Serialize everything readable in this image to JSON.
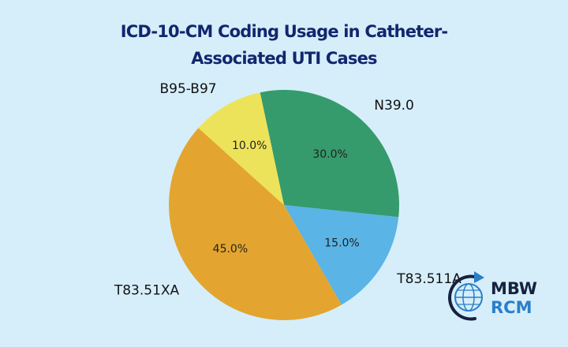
{
  "chart_data": {
    "type": "pie",
    "title_lines": [
      "ICD-10-CM Coding Usage in Catheter-",
      "Associated UTI Cases"
    ],
    "slices": [
      {
        "label": "N39.0",
        "value": 30.0,
        "pct_label": "30.0%",
        "color": "#359b6c"
      },
      {
        "label": "T83.511A",
        "value": 15.0,
        "pct_label": "15.0%",
        "color": "#5ab4e5"
      },
      {
        "label": "T83.51XA",
        "value": 45.0,
        "pct_label": "45.0%",
        "color": "#e3a52f"
      },
      {
        "label": "B95-B97",
        "value": 10.0,
        "pct_label": "10.0%",
        "color": "#ede35a"
      }
    ],
    "start_angle_deg": 102,
    "direction": "clockwise"
  },
  "logo": {
    "line1": "MBW",
    "line2": "RCM",
    "color_dark": "#16213e",
    "color_accent": "#2a7fc9"
  },
  "colors": {
    "background": "#d6eefa",
    "title": "#12266e"
  }
}
